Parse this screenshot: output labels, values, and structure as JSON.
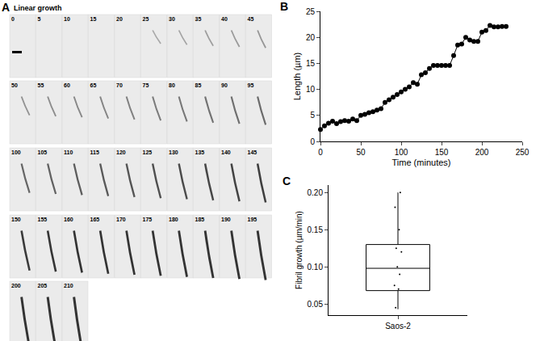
{
  "panel_a": {
    "letter": "A",
    "title": "Linear growth",
    "frames": [
      0,
      5,
      10,
      15,
      20,
      25,
      30,
      35,
      40,
      45,
      50,
      55,
      60,
      65,
      70,
      75,
      80,
      85,
      90,
      95,
      100,
      105,
      110,
      115,
      120,
      125,
      130,
      135,
      140,
      145,
      150,
      155,
      160,
      165,
      170,
      175,
      180,
      185,
      190,
      195,
      200,
      205,
      210
    ]
  },
  "chart_data": [
    {
      "letter": "B",
      "type": "line",
      "marker": "circle",
      "color": "#000000",
      "x_label": "Time (minutes)",
      "y_label": "Length (µm)",
      "x": [
        0,
        5,
        10,
        15,
        20,
        25,
        30,
        35,
        40,
        45,
        50,
        55,
        60,
        65,
        70,
        75,
        80,
        85,
        90,
        95,
        100,
        105,
        110,
        115,
        120,
        125,
        130,
        135,
        140,
        145,
        150,
        155,
        160,
        165,
        170,
        175,
        180,
        185,
        190,
        195,
        200,
        205,
        210,
        215,
        220,
        225,
        230
      ],
      "values": [
        2.3,
        3.0,
        3.5,
        3.9,
        3.4,
        3.8,
        4.0,
        3.9,
        4.3,
        4.0,
        5.0,
        5.2,
        5.5,
        5.7,
        6.0,
        6.3,
        7.5,
        8.0,
        8.5,
        9.0,
        9.5,
        10.0,
        10.5,
        11.3,
        11.0,
        12.8,
        13.2,
        14.0,
        14.6,
        14.6,
        14.6,
        14.6,
        14.6,
        16.5,
        18.5,
        18.7,
        20.0,
        19.5,
        19.2,
        19.2,
        21.0,
        21.3,
        22.3,
        22.0,
        22.0,
        22.1,
        22.1
      ],
      "xlim": [
        0,
        250
      ],
      "xticks": [
        0,
        50,
        100,
        150,
        200,
        250
      ],
      "ylim": [
        0,
        25
      ],
      "yticks": [
        0,
        5,
        10,
        15,
        20,
        25
      ]
    },
    {
      "letter": "C",
      "type": "box",
      "color": "#000000",
      "categories": [
        "Saos-2"
      ],
      "y_label": "Fibril growth (µm/min)",
      "q1": 0.068,
      "median": 0.098,
      "q3": 0.13,
      "lower_whisker": 0.043,
      "upper_whisker": 0.2,
      "points": [
        0.2,
        0.18,
        0.15,
        0.125,
        0.12,
        0.1,
        0.09,
        0.075,
        0.07,
        0.045
      ],
      "ylim": [
        0.035,
        0.21
      ],
      "yticks": [
        0.05,
        {
          "value": 0.1,
          "label": "0.10"
        },
        0.15,
        {
          "value": 0.2,
          "label": "0.20"
        }
      ]
    }
  ]
}
